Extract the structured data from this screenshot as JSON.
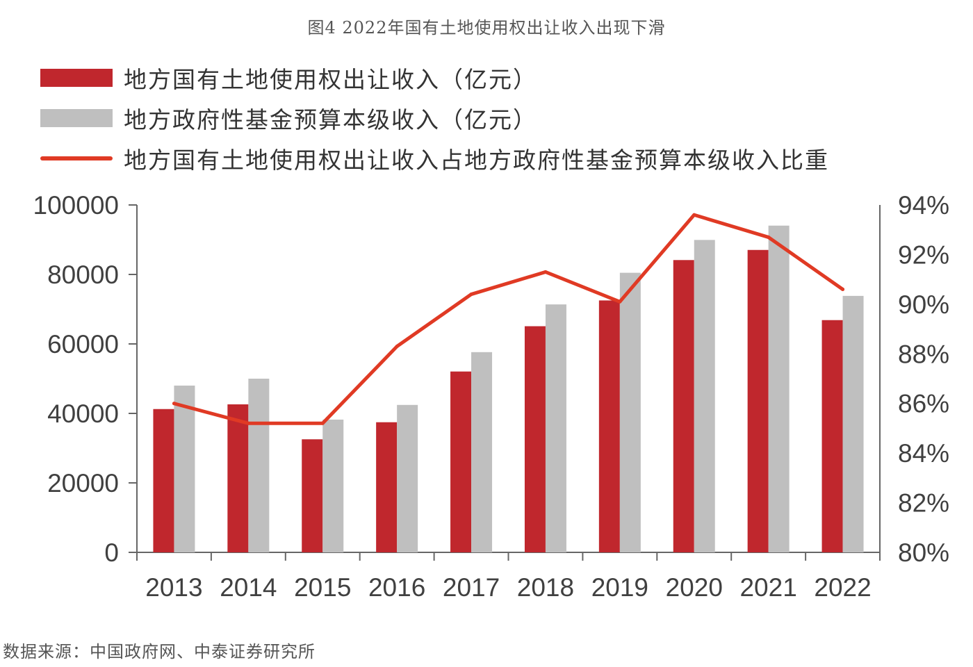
{
  "title": "图4 2022年国有土地使用权出让收入出现下滑",
  "source": "数据来源：中国政府网、中泰证券研究所",
  "colors": {
    "land": "#C0272D",
    "fund": "#BFBFBF",
    "ratio": "#E03A24",
    "axis": "#666666"
  },
  "chart_data": {
    "type": "bar",
    "categories": [
      "2013",
      "2014",
      "2015",
      "2016",
      "2017",
      "2018",
      "2019",
      "2020",
      "2021",
      "2022"
    ],
    "series": [
      {
        "name": "地方国有土地使用权出让收入（亿元）",
        "type": "bar",
        "axis": "left",
        "values": [
          41250,
          42606,
          32547,
          37457,
          52059,
          65096,
          72517,
          84142,
          87051,
          66854
        ]
      },
      {
        "name": "地方政府性基金预算本级收入（亿元）",
        "type": "bar",
        "axis": "left",
        "values": [
          48007,
          49995,
          38218,
          42441,
          57637,
          71372,
          80476,
          89927,
          94052,
          73825
        ]
      },
      {
        "name": "地方国有土地使用权出让收入占地方政府性基金预算本级收入比重",
        "type": "line",
        "axis": "right",
        "values": [
          86.0,
          85.2,
          85.2,
          88.3,
          90.4,
          91.3,
          90.1,
          93.6,
          92.7,
          90.6
        ]
      }
    ],
    "y_left": {
      "min": 0,
      "max": 100000,
      "ticks": [
        "0",
        "20000",
        "40000",
        "60000",
        "80000",
        "100000"
      ]
    },
    "y_right": {
      "min": 80,
      "max": 94,
      "ticks": [
        "80%",
        "82%",
        "84%",
        "86%",
        "88%",
        "90%",
        "92%",
        "94%"
      ]
    },
    "legend_position": "top",
    "grid": false
  }
}
